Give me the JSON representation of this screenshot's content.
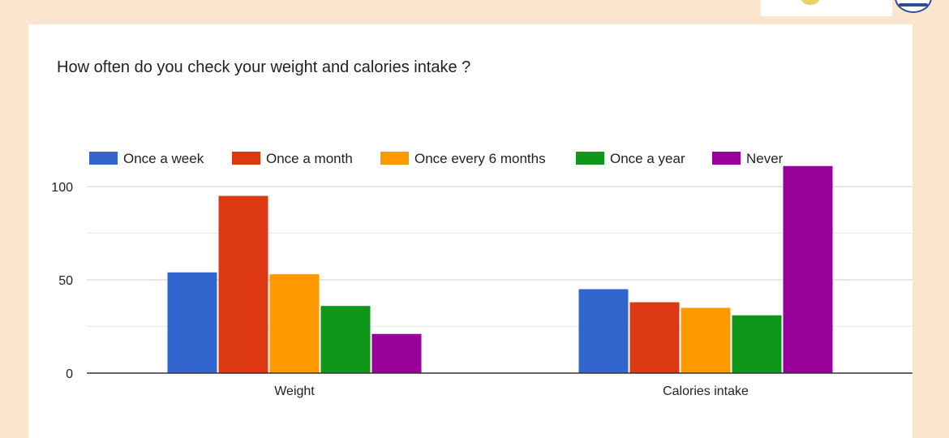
{
  "title": "How often do you check your weight and calories intake ?",
  "chart_data": {
    "type": "bar",
    "categories": [
      "Weight",
      "Calories intake"
    ],
    "series": [
      {
        "name": "Once a week",
        "color": "#3366cc",
        "values": [
          54,
          45
        ]
      },
      {
        "name": "Once a month",
        "color": "#dc3912",
        "values": [
          95,
          38
        ]
      },
      {
        "name": "Once every 6 months",
        "color": "#ff9900",
        "values": [
          53,
          35
        ]
      },
      {
        "name": "Once a year",
        "color": "#109618",
        "values": [
          36,
          31
        ]
      },
      {
        "name": "Never",
        "color": "#990099",
        "values": [
          21,
          111
        ]
      }
    ],
    "yticks": [
      0,
      50,
      100
    ],
    "ylim": [
      0,
      112
    ],
    "grid": true,
    "legend_position": "top",
    "xlabel": "",
    "ylabel": ""
  }
}
